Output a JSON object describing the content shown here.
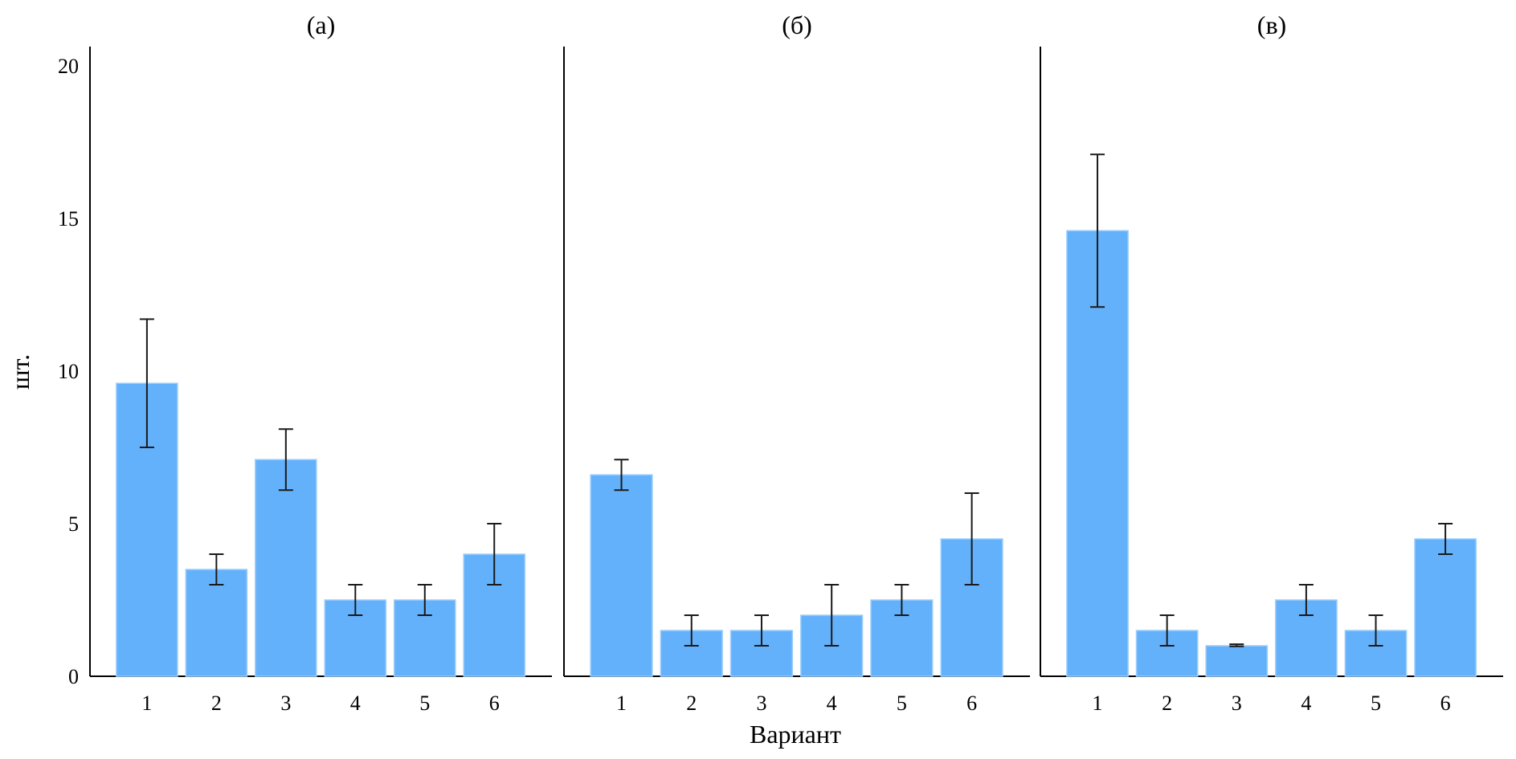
{
  "chart_data": [
    {
      "type": "bar",
      "title": "(а)",
      "categories": [
        "1",
        "2",
        "3",
        "4",
        "5",
        "6"
      ],
      "values": [
        9.6,
        3.5,
        7.1,
        2.5,
        2.5,
        4.0
      ],
      "err_low": [
        7.5,
        3.0,
        6.1,
        2.0,
        2.0,
        3.0
      ],
      "err_high": [
        11.7,
        4.0,
        8.1,
        3.0,
        3.0,
        5.0
      ]
    },
    {
      "type": "bar",
      "title": "(б)",
      "categories": [
        "1",
        "2",
        "3",
        "4",
        "5",
        "6"
      ],
      "values": [
        6.6,
        1.5,
        1.5,
        2.0,
        2.5,
        4.5
      ],
      "err_low": [
        6.1,
        1.0,
        1.0,
        1.0,
        2.0,
        3.0
      ],
      "err_high": [
        7.1,
        2.0,
        2.0,
        3.0,
        3.0,
        6.0
      ]
    },
    {
      "type": "bar",
      "title": "(в)",
      "categories": [
        "1",
        "2",
        "3",
        "4",
        "5",
        "6"
      ],
      "values": [
        14.6,
        1.5,
        1.0,
        2.5,
        1.5,
        4.5
      ],
      "err_low": [
        12.1,
        1.0,
        0.98,
        2.0,
        1.0,
        4.0
      ],
      "err_high": [
        17.1,
        2.0,
        1.05,
        3.0,
        2.0,
        5.0
      ]
    }
  ],
  "shared": {
    "xlabel": "Вариант",
    "ylabel": "шт.",
    "ylim": [
      0,
      20
    ],
    "yticks": [
      "0",
      "5",
      "10",
      "15",
      "20"
    ],
    "bar_color": "#64b1fb",
    "bar_edge": "#9ccdfc",
    "error_color": "#1a1a1a",
    "grid": false
  }
}
